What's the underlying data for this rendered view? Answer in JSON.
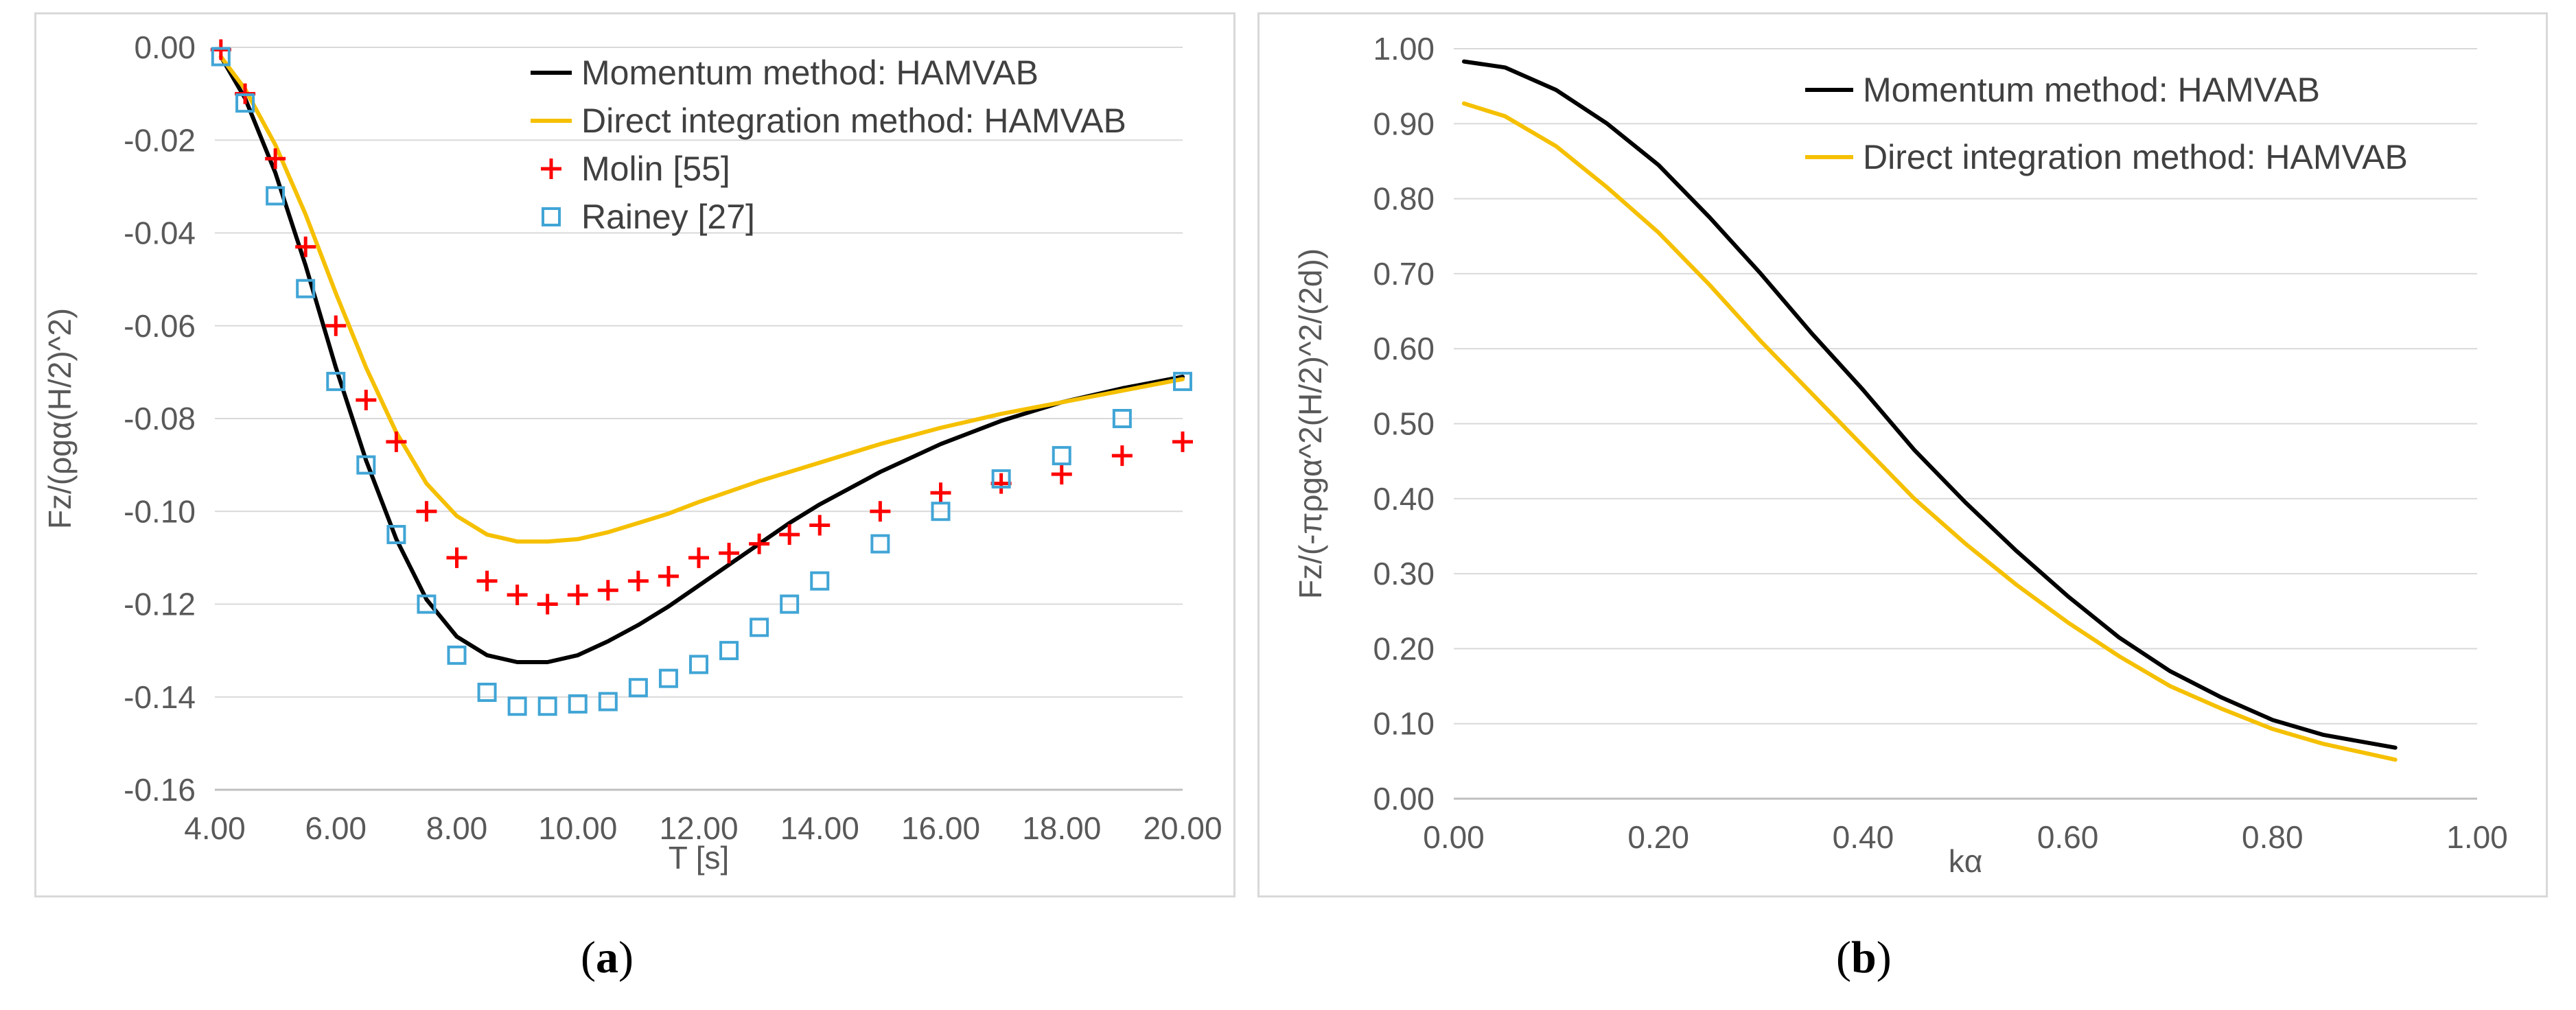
{
  "captions": {
    "a": {
      "open": "(",
      "letter": "a",
      "close": ")"
    },
    "b": {
      "open": "(",
      "letter": "b",
      "close": ")"
    }
  },
  "chart_data": [
    {
      "type": "line",
      "panel": "a",
      "xlabel": "T [s]",
      "ylabel": "Fz/(ρgα(H/2)^2)",
      "xlim": [
        4,
        20
      ],
      "ylim": [
        -0.16,
        0
      ],
      "xticks": [
        4,
        6,
        8,
        10,
        12,
        14,
        16,
        18,
        20
      ],
      "xtick_labels": [
        "4.00",
        "6.00",
        "8.00",
        "10.00",
        "12.00",
        "14.00",
        "16.00",
        "18.00",
        "20.00"
      ],
      "yticks": [
        0,
        -0.02,
        -0.04,
        -0.06,
        -0.08,
        -0.1,
        -0.12,
        -0.14,
        -0.16
      ],
      "ytick_labels": [
        "0.00",
        "-0.02",
        "-0.04",
        "-0.06",
        "-0.08",
        "-0.10",
        "-0.12",
        "-0.14",
        "-0.16"
      ],
      "grid": "horizontal",
      "legend_position": "top-right",
      "series": [
        {
          "name": "Momentum method: HAMVAB",
          "style": "line",
          "color": "#000000",
          "x": [
            4.1,
            4.5,
            5.0,
            5.5,
            6.0,
            6.5,
            7.0,
            7.5,
            8.0,
            8.5,
            9.0,
            9.5,
            10.0,
            10.5,
            11.0,
            11.5,
            12.0,
            12.5,
            13.0,
            13.5,
            14.0,
            15.0,
            16.0,
            17.0,
            18.0,
            19.0,
            20.0
          ],
          "y": [
            -0.002,
            -0.011,
            -0.027,
            -0.047,
            -0.069,
            -0.089,
            -0.106,
            -0.119,
            -0.127,
            -0.131,
            -0.1325,
            -0.1325,
            -0.131,
            -0.128,
            -0.1245,
            -0.1205,
            -0.116,
            -0.1115,
            -0.107,
            -0.1025,
            -0.0985,
            -0.0915,
            -0.0855,
            -0.0805,
            -0.0765,
            -0.0735,
            -0.071
          ]
        },
        {
          "name": "Direct integration method: HAMVAB",
          "style": "line",
          "color": "#f5c000",
          "x": [
            4.1,
            4.5,
            5.0,
            5.5,
            6.0,
            6.5,
            7.0,
            7.5,
            8.0,
            8.5,
            9.0,
            9.5,
            10.0,
            10.5,
            11.0,
            11.5,
            12.0,
            13.0,
            14.0,
            15.0,
            16.0,
            17.0,
            18.0,
            19.0,
            20.0
          ],
          "y": [
            -0.002,
            -0.009,
            -0.021,
            -0.036,
            -0.053,
            -0.069,
            -0.083,
            -0.094,
            -0.101,
            -0.105,
            -0.1065,
            -0.1065,
            -0.106,
            -0.1045,
            -0.1025,
            -0.1005,
            -0.098,
            -0.0935,
            -0.0895,
            -0.0855,
            -0.082,
            -0.079,
            -0.0765,
            -0.074,
            -0.0715
          ]
        },
        {
          "name": "Molin [55]",
          "style": "marker-plus",
          "color": "#ff0000",
          "x": [
            4.1,
            4.5,
            5.0,
            5.5,
            6.0,
            6.5,
            7.0,
            7.5,
            8.0,
            8.5,
            9.0,
            9.5,
            10.0,
            10.5,
            11.0,
            11.5,
            12.0,
            12.5,
            13.0,
            13.5,
            14.0,
            15.0,
            16.0,
            17.0,
            18.0,
            19.0,
            20.0
          ],
          "y": [
            -0.0005,
            -0.01,
            -0.024,
            -0.043,
            -0.06,
            -0.076,
            -0.085,
            -0.1,
            -0.11,
            -0.115,
            -0.118,
            -0.12,
            -0.118,
            -0.117,
            -0.115,
            -0.114,
            -0.11,
            -0.109,
            -0.107,
            -0.105,
            -0.103,
            -0.1,
            -0.096,
            -0.094,
            -0.092,
            -0.088,
            -0.085
          ]
        },
        {
          "name": "Rainey [27]",
          "style": "marker-square",
          "color": "#41a5d6",
          "x": [
            4.1,
            4.5,
            5.0,
            5.5,
            6.0,
            6.5,
            7.0,
            7.5,
            8.0,
            8.5,
            9.0,
            9.5,
            10.0,
            10.5,
            11.0,
            11.5,
            12.0,
            12.5,
            13.0,
            13.5,
            14.0,
            15.0,
            16.0,
            17.0,
            18.0,
            19.0,
            20.0
          ],
          "y": [
            -0.002,
            -0.012,
            -0.032,
            -0.052,
            -0.072,
            -0.09,
            -0.105,
            -0.12,
            -0.131,
            -0.139,
            -0.142,
            -0.142,
            -0.1415,
            -0.141,
            -0.138,
            -0.136,
            -0.133,
            -0.13,
            -0.125,
            -0.12,
            -0.115,
            -0.107,
            -0.1,
            -0.093,
            -0.088,
            -0.08,
            -0.072
          ]
        }
      ]
    },
    {
      "type": "line",
      "panel": "b",
      "xlabel": "kα",
      "ylabel": "Fz/(-πρgα^2(H/2)^2/(2d))",
      "xlim": [
        0,
        1
      ],
      "ylim": [
        0,
        1
      ],
      "xticks": [
        0,
        0.2,
        0.4,
        0.6,
        0.8,
        1.0
      ],
      "xtick_labels": [
        "0.00",
        "0.20",
        "0.40",
        "0.60",
        "0.80",
        "1.00"
      ],
      "yticks": [
        0,
        0.1,
        0.2,
        0.3,
        0.4,
        0.5,
        0.6,
        0.7,
        0.8,
        0.9,
        1.0
      ],
      "ytick_labels": [
        "0.00",
        "0.10",
        "0.20",
        "0.30",
        "0.40",
        "0.50",
        "0.60",
        "0.70",
        "0.80",
        "0.90",
        "1.00"
      ],
      "grid": "horizontal",
      "legend_position": "top-right",
      "series": [
        {
          "name": "Momentum method: HAMVAB",
          "style": "line",
          "color": "#000000",
          "x": [
            0.01,
            0.05,
            0.1,
            0.15,
            0.2,
            0.25,
            0.3,
            0.35,
            0.4,
            0.45,
            0.5,
            0.55,
            0.6,
            0.65,
            0.7,
            0.75,
            0.8,
            0.85,
            0.92
          ],
          "y": [
            0.983,
            0.975,
            0.945,
            0.9,
            0.845,
            0.775,
            0.7,
            0.62,
            0.545,
            0.465,
            0.395,
            0.33,
            0.27,
            0.215,
            0.17,
            0.135,
            0.105,
            0.085,
            0.068
          ]
        },
        {
          "name": "Direct integration method: HAMVAB",
          "style": "line",
          "color": "#f5c000",
          "x": [
            0.01,
            0.05,
            0.1,
            0.15,
            0.2,
            0.25,
            0.3,
            0.35,
            0.4,
            0.45,
            0.5,
            0.55,
            0.6,
            0.65,
            0.7,
            0.75,
            0.8,
            0.85,
            0.92
          ],
          "y": [
            0.927,
            0.91,
            0.87,
            0.815,
            0.755,
            0.685,
            0.61,
            0.54,
            0.47,
            0.4,
            0.34,
            0.285,
            0.235,
            0.19,
            0.15,
            0.12,
            0.093,
            0.073,
            0.052
          ]
        }
      ]
    }
  ]
}
